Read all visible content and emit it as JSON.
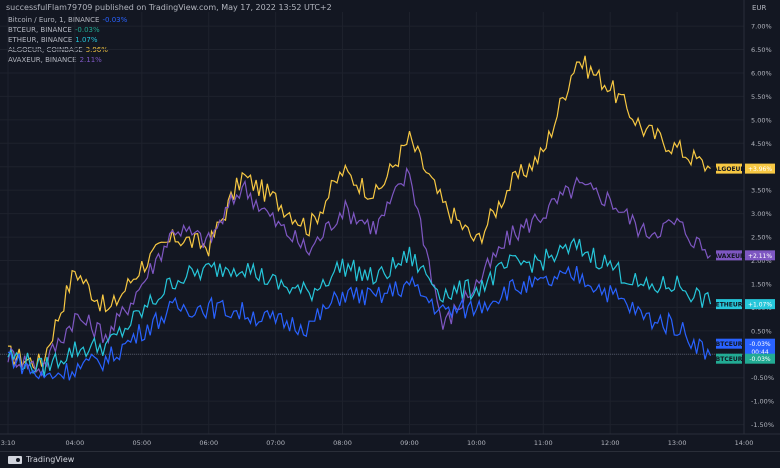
{
  "attribution": "successfulFlam79709 published on TradingView.com, May 17, 2022 13:52 UTC+2",
  "legend": [
    {
      "label": "Bitcoin / Euro, 1, BINANCE",
      "change": "-0.03%",
      "color": "#2962ff"
    },
    {
      "label": "BTCEUR, BINANCE",
      "change": "-0.03%",
      "color": "#22ab94"
    },
    {
      "label": "ETHEUR, BINANCE",
      "change": "1.07%",
      "color": "#26c6da"
    },
    {
      "label": "ALGOEUR, COINBASE",
      "change": "3.96%",
      "color": "#f7c843"
    },
    {
      "label": "AVAXEUR, BINANCE",
      "change": "2.11%",
      "color": "#7e57c2"
    }
  ],
  "footer": {
    "brand": "TradingView"
  },
  "chart_data": {
    "type": "line",
    "currency_label": "EUR",
    "x_tick_labels": [
      "3:10",
      "04:00",
      "05:00",
      "06:00",
      "07:00",
      "08:00",
      "09:00",
      "10:00",
      "11:00",
      "12:00",
      "13:00",
      "14:00"
    ],
    "y_tick_labels": [
      "7.00%",
      "6.50%",
      "6.00%",
      "5.50%",
      "5.00%",
      "4.50%",
      "4.00%",
      "3.50%",
      "3.00%",
      "2.50%",
      "2.00%",
      "1.50%",
      "1.00%",
      "0.50%",
      "0.00%",
      "-0.50%",
      "-1.00%",
      "-1.50%"
    ],
    "ylim": [
      -1.7,
      7.3
    ],
    "x_hours": [
      3.0,
      3.5,
      4.0,
      4.5,
      5.0,
      5.5,
      6.0,
      6.5,
      7.0,
      7.5,
      8.0,
      8.5,
      9.0,
      9.5,
      10.0,
      10.5,
      11.0,
      11.5,
      12.0,
      12.5,
      13.0,
      13.5
    ],
    "xlim": [
      3.0,
      14.0
    ],
    "baseline": 0.0,
    "series": [
      {
        "name": "ALGOEUR",
        "color": "#f7c843",
        "values": [
          0.0,
          -0.2,
          1.8,
          0.9,
          1.9,
          2.5,
          2.3,
          3.8,
          3.3,
          2.7,
          3.9,
          3.4,
          4.6,
          3.2,
          2.4,
          3.6,
          4.3,
          6.3,
          5.7,
          4.8,
          4.4,
          3.96
        ],
        "label": "ALGOEUR",
        "label_value": "+3.96%"
      },
      {
        "name": "AVAXEUR",
        "color": "#7e57c2",
        "values": [
          0.0,
          -0.3,
          0.8,
          0.4,
          1.5,
          2.7,
          2.4,
          3.6,
          2.8,
          2.2,
          3.1,
          2.7,
          3.9,
          0.6,
          1.5,
          2.5,
          3.0,
          3.6,
          3.3,
          2.6,
          2.8,
          2.11
        ],
        "label": "AVAXEUR",
        "label_value": "+2.11%"
      },
      {
        "name": "ETHEUR",
        "color": "#26c6da",
        "values": [
          0.0,
          -0.3,
          0.1,
          0.2,
          0.9,
          1.6,
          1.8,
          1.9,
          1.5,
          1.3,
          1.9,
          1.6,
          2.1,
          1.3,
          1.4,
          1.9,
          2.0,
          2.3,
          1.9,
          1.4,
          1.5,
          1.07
        ],
        "label": "ETHEUR",
        "label_value": "+1.07%"
      },
      {
        "name": "BTCEUR",
        "color": "#2962ff",
        "values": [
          0.0,
          -0.5,
          -0.3,
          -0.1,
          0.5,
          1.0,
          1.0,
          0.9,
          0.7,
          0.6,
          1.3,
          1.2,
          1.5,
          0.9,
          1.0,
          1.4,
          1.5,
          1.7,
          1.3,
          0.8,
          0.6,
          -0.03
        ],
        "label": "BTCEUR",
        "label_value": "-0.03%",
        "label_sub": "00:44"
      },
      {
        "name": "BTCEUR",
        "color": "#22ab94",
        "values": [],
        "label": "BTCEUR",
        "label_value": "-0.03%"
      }
    ]
  }
}
